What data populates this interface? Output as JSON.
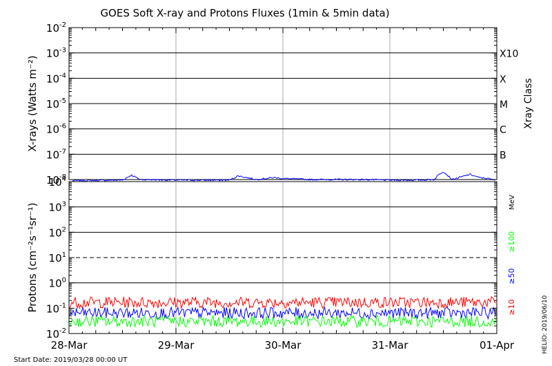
{
  "title": "GOES Soft X-ray and Protons Fluxes   (1min & 5min data)",
  "start_date": "Start Date: 2019/03/28 00:00 UT",
  "credit": "HELIO: 2019/06/10",
  "chart_data": [
    {
      "type": "line",
      "panel": "xray",
      "ylabel": "X-rays (Watts m⁻²)",
      "yscale": "log",
      "ylim": [
        1e-08,
        0.01
      ],
      "y_ticks": [
        {
          "base": "10",
          "exp": "-2",
          "value": 0.01
        },
        {
          "base": "10",
          "exp": "-3",
          "value": 0.001
        },
        {
          "base": "10",
          "exp": "-4",
          "value": 0.0001
        },
        {
          "base": "10",
          "exp": "-5",
          "value": 1e-05
        },
        {
          "base": "10",
          "exp": "-6",
          "value": 1e-06
        },
        {
          "base": "10",
          "exp": "-7",
          "value": 1e-07
        },
        {
          "base": "10",
          "exp": "-8",
          "value": 1e-08
        }
      ],
      "right_axis_label": "Xray Class",
      "classes": [
        {
          "label": "X10",
          "value": 0.001
        },
        {
          "label": "X",
          "value": 0.0001
        },
        {
          "label": "M",
          "value": 1e-05
        },
        {
          "label": "C",
          "value": 1e-06
        },
        {
          "label": "B",
          "value": 1e-07
        }
      ],
      "series": [
        {
          "color": "#0000ff",
          "x": [
            "2019-03-28",
            "2019-03-28T12:00",
            "2019-03-28T14:00",
            "2019-03-28T16:00",
            "2019-03-29",
            "2019-03-29T12:00",
            "2019-03-29T14:00",
            "2019-03-29T18:00",
            "2019-03-29T22:00",
            "2019-03-30",
            "2019-03-30T06:00",
            "2019-03-30T12:00",
            "2019-03-30T18:00",
            "2019-03-31",
            "2019-03-31T06:00",
            "2019-03-31T10:00",
            "2019-03-31T11:00",
            "2019-03-31T12:00",
            "2019-03-31T14:00",
            "2019-03-31T18:00",
            "2019-03-31T20:00",
            "2019-03-31T22:00",
            "2019-04-01"
          ],
          "y": [
            9e-09,
            9.5e-09,
            1.5e-08,
            1e-08,
            9.5e-09,
            9.5e-09,
            1.4e-08,
            1e-08,
            1.2e-08,
            1.1e-08,
            1e-08,
            1e-08,
            1e-08,
            9.5e-09,
            9.5e-09,
            1e-08,
            1.6e-08,
            2.1e-08,
            1e-08,
            1.6e-08,
            1.2e-08,
            1.1e-08,
            9e-09
          ]
        }
      ]
    },
    {
      "type": "line",
      "panel": "protons",
      "ylabel": "Protons (cm⁻²s⁻¹sr⁻¹)",
      "yscale": "log",
      "ylim": [
        0.01,
        10000
      ],
      "y_ticks": [
        {
          "base": "10",
          "exp": "4",
          "value": 10000
        },
        {
          "base": "10",
          "exp": "3",
          "value": 1000
        },
        {
          "base": "10",
          "exp": "2",
          "value": 100
        },
        {
          "base": "10",
          "exp": "1",
          "value": 10
        },
        {
          "base": "10",
          "exp": "0",
          "value": 1
        },
        {
          "base": "10",
          "exp": "-1",
          "value": 0.1
        },
        {
          "base": "10",
          "exp": "-2",
          "value": 0.01
        }
      ],
      "unit": "MeV",
      "threshold": 10,
      "series": [
        {
          "name": "≥10",
          "color": "#ff0000",
          "level": 0.17
        },
        {
          "name": "≥50",
          "color": "#0000ff",
          "level": 0.065
        },
        {
          "name": "≥100",
          "color": "#00ff00",
          "level": 0.03
        }
      ]
    }
  ],
  "x_axis": {
    "ticks": [
      "28-Mar",
      "29-Mar",
      "30-Mar",
      "31-Mar",
      "01-Apr"
    ]
  }
}
